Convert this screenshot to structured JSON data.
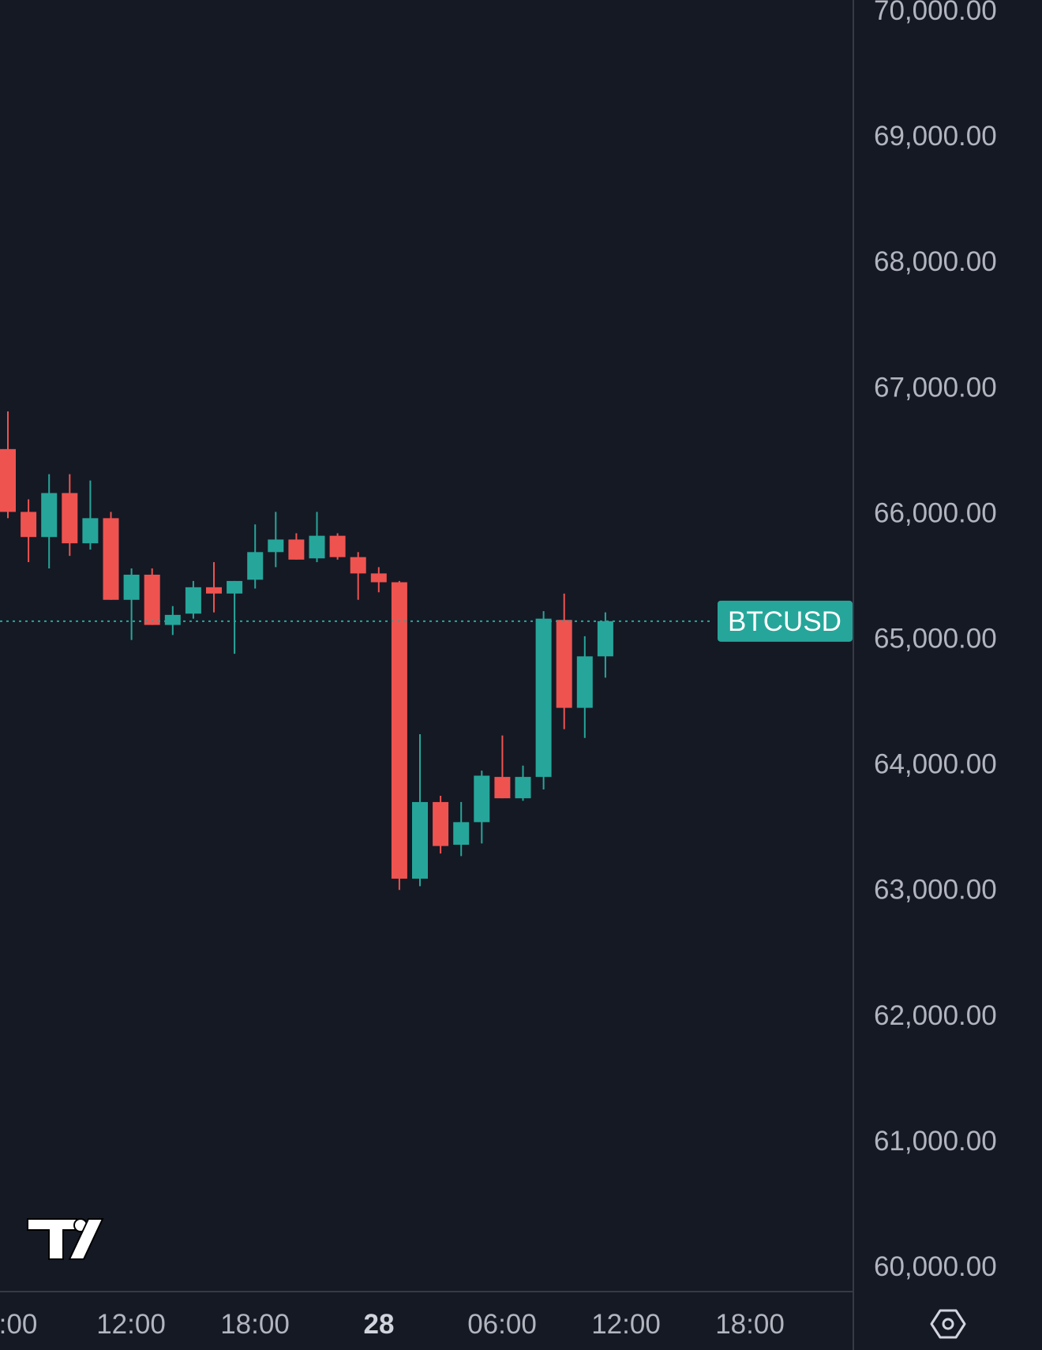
{
  "chart_data": {
    "type": "candlestick",
    "symbol": "BTCUSD",
    "current_price": 65130,
    "y_ticks": [
      "70,000.00",
      "69,000.00",
      "68,000.00",
      "67,000.00",
      "66,000.00",
      "65,000.00",
      "64,000.00",
      "63,000.00",
      "62,000.00",
      "61,000.00",
      "60,000.00"
    ],
    "y_tick_values": [
      70000,
      69000,
      68000,
      67000,
      66000,
      65000,
      64000,
      63000,
      62000,
      61000,
      60000
    ],
    "ylim": [
      60000,
      70000
    ],
    "x_ticks": [
      {
        "label": ":00",
        "bold": false
      },
      {
        "label": "12:00",
        "bold": false
      },
      {
        "label": "18:00",
        "bold": false
      },
      {
        "label": "28",
        "bold": true
      },
      {
        "label": "06:00",
        "bold": false
      },
      {
        "label": "12:00",
        "bold": false
      },
      {
        "label": "18:00",
        "bold": false
      }
    ],
    "candles": [
      {
        "o": 66500,
        "h": 66800,
        "l": 65950,
        "c": 66000
      },
      {
        "o": 66000,
        "h": 66100,
        "l": 65600,
        "c": 65800
      },
      {
        "o": 65800,
        "h": 66300,
        "l": 65550,
        "c": 66150
      },
      {
        "o": 66150,
        "h": 66300,
        "l": 65650,
        "c": 65750
      },
      {
        "o": 65750,
        "h": 66250,
        "l": 65700,
        "c": 65950
      },
      {
        "o": 65950,
        "h": 66000,
        "l": 65300,
        "c": 65300
      },
      {
        "o": 65300,
        "h": 65550,
        "l": 64980,
        "c": 65500
      },
      {
        "o": 65500,
        "h": 65550,
        "l": 65100,
        "c": 65100
      },
      {
        "o": 65100,
        "h": 65250,
        "l": 65020,
        "c": 65180
      },
      {
        "o": 65190,
        "h": 65450,
        "l": 65150,
        "c": 65400
      },
      {
        "o": 65400,
        "h": 65600,
        "l": 65200,
        "c": 65350
      },
      {
        "o": 65350,
        "h": 65450,
        "l": 64870,
        "c": 65450
      },
      {
        "o": 65460,
        "h": 65900,
        "l": 65390,
        "c": 65680
      },
      {
        "o": 65680,
        "h": 66000,
        "l": 65560,
        "c": 65780
      },
      {
        "o": 65780,
        "h": 65830,
        "l": 65620,
        "c": 65620
      },
      {
        "o": 65630,
        "h": 66000,
        "l": 65600,
        "c": 65810
      },
      {
        "o": 65810,
        "h": 65830,
        "l": 65620,
        "c": 65640
      },
      {
        "o": 65640,
        "h": 65680,
        "l": 65300,
        "c": 65510
      },
      {
        "o": 65510,
        "h": 65560,
        "l": 65360,
        "c": 65440
      },
      {
        "o": 65440,
        "h": 65450,
        "l": 62990,
        "c": 63080
      },
      {
        "o": 63080,
        "h": 64230,
        "l": 63020,
        "c": 63690
      },
      {
        "o": 63690,
        "h": 63740,
        "l": 63280,
        "c": 63340
      },
      {
        "o": 63350,
        "h": 63690,
        "l": 63260,
        "c": 63530
      },
      {
        "o": 63530,
        "h": 63940,
        "l": 63360,
        "c": 63900
      },
      {
        "o": 63890,
        "h": 64220,
        "l": 63720,
        "c": 63720
      },
      {
        "o": 63720,
        "h": 63980,
        "l": 63700,
        "c": 63890
      },
      {
        "o": 63890,
        "h": 65210,
        "l": 63790,
        "c": 65150
      },
      {
        "o": 65140,
        "h": 65350,
        "l": 64270,
        "c": 64440
      },
      {
        "o": 64440,
        "h": 65010,
        "l": 64200,
        "c": 64850
      },
      {
        "o": 64850,
        "h": 65200,
        "l": 64680,
        "c": 65130
      }
    ],
    "up_color": "#26a69a",
    "down_color": "#ef5350",
    "grid": false,
    "watermark": "TradingView logo",
    "settings_icon": "settings-hexagon-icon"
  }
}
